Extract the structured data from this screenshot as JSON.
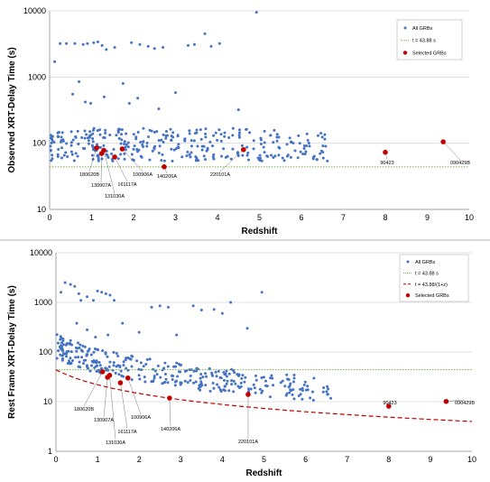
{
  "colors": {
    "all_grbs": "#4472c4",
    "selected": "#c00000",
    "threshold": "#70ad47",
    "curve": "#c00000"
  },
  "chart_data": [
    {
      "type": "scatter",
      "xlabel": "Redshift",
      "ylabel": "Observed XRT-Delay Time (s)",
      "xlim": [
        0,
        10
      ],
      "ylim": [
        10,
        10000
      ],
      "yscale": "log",
      "x_ticks": [
        "0",
        "1",
        "2",
        "3",
        "4",
        "5",
        "6",
        "7",
        "8",
        "9",
        "10"
      ],
      "y_ticks": [
        "10",
        "100",
        "1000",
        "10000"
      ],
      "legend_position": "top-right",
      "legend": [
        "All GRBs",
        "t = 43.88 s",
        "Selected GRBs"
      ],
      "threshold": 43.88,
      "selected": [
        {
          "name": "180620B",
          "x": 1.12,
          "y": 85
        },
        {
          "name": "130907A",
          "x": 1.24,
          "y": 70
        },
        {
          "name": "161117A",
          "x": 1.55,
          "y": 62
        },
        {
          "name": "131030A",
          "x": 1.29,
          "y": 78
        },
        {
          "name": "100906A",
          "x": 1.73,
          "y": 82
        },
        {
          "name": "140206A",
          "x": 2.73,
          "y": 44
        },
        {
          "name": "220101A",
          "x": 4.62,
          "y": 80
        },
        {
          "name": "90423",
          "x": 8.0,
          "y": 73
        },
        {
          "name": "090429B",
          "x": 9.38,
          "y": 105
        }
      ],
      "all_grbs_outliers": [
        {
          "x": 0.12,
          "y": 1700
        },
        {
          "x": 0.25,
          "y": 3200
        },
        {
          "x": 0.4,
          "y": 3200
        },
        {
          "x": 0.6,
          "y": 3200
        },
        {
          "x": 0.8,
          "y": 3100
        },
        {
          "x": 0.9,
          "y": 3200
        },
        {
          "x": 1.05,
          "y": 3300
        },
        {
          "x": 1.15,
          "y": 3400
        },
        {
          "x": 1.25,
          "y": 3000
        },
        {
          "x": 1.35,
          "y": 2600
        },
        {
          "x": 1.55,
          "y": 2800
        },
        {
          "x": 1.95,
          "y": 3300
        },
        {
          "x": 2.15,
          "y": 3100
        },
        {
          "x": 2.35,
          "y": 2900
        },
        {
          "x": 2.5,
          "y": 2700
        },
        {
          "x": 2.7,
          "y": 2800
        },
        {
          "x": 3.3,
          "y": 3000
        },
        {
          "x": 3.45,
          "y": 3100
        },
        {
          "x": 3.7,
          "y": 4500
        },
        {
          "x": 3.85,
          "y": 2900
        },
        {
          "x": 4.05,
          "y": 3200
        },
        {
          "x": 4.93,
          "y": 9500
        },
        {
          "x": 0.7,
          "y": 850
        },
        {
          "x": 0.55,
          "y": 550
        },
        {
          "x": 0.85,
          "y": 420
        },
        {
          "x": 1.3,
          "y": 500
        },
        {
          "x": 1.75,
          "y": 800
        },
        {
          "x": 2.1,
          "y": 480
        },
        {
          "x": 3.0,
          "y": 580
        },
        {
          "x": 2.6,
          "y": 330
        },
        {
          "x": 4.5,
          "y": 320
        },
        {
          "x": 0.98,
          "y": 400
        },
        {
          "x": 1.9,
          "y": 400
        }
      ]
    },
    {
      "type": "scatter",
      "xlabel": "Redshift",
      "ylabel": "Rest Frame XRT-Delay Time (s)",
      "xlim": [
        0,
        10
      ],
      "ylim": [
        1,
        10000
      ],
      "yscale": "log",
      "x_ticks": [
        "0",
        "1",
        "2",
        "3",
        "4",
        "5",
        "6",
        "7",
        "8",
        "9",
        "10"
      ],
      "y_ticks": [
        "1",
        "10",
        "100",
        "1000",
        "10000"
      ],
      "legend_position": "top-right",
      "legend": [
        "All GRBs",
        "t = 43.88 s",
        "t = 43.88/(1+z)",
        "Selected GRBs"
      ],
      "threshold": 43.88,
      "selected": [
        {
          "name": "180620B",
          "x": 1.12,
          "y": 40
        },
        {
          "name": "130907A",
          "x": 1.24,
          "y": 31
        },
        {
          "name": "161117A",
          "x": 1.55,
          "y": 24
        },
        {
          "name": "131030A",
          "x": 1.29,
          "y": 34
        },
        {
          "name": "100906A",
          "x": 1.73,
          "y": 30
        },
        {
          "name": "140206A",
          "x": 2.73,
          "y": 11.8
        },
        {
          "name": "220101A",
          "x": 4.62,
          "y": 14
        },
        {
          "name": "90423",
          "x": 8.0,
          "y": 8.1
        },
        {
          "name": "090429B",
          "x": 9.38,
          "y": 10.1
        }
      ],
      "all_grbs_outliers": [
        {
          "x": 0.12,
          "y": 1600
        },
        {
          "x": 0.22,
          "y": 2500
        },
        {
          "x": 0.35,
          "y": 2300
        },
        {
          "x": 0.45,
          "y": 2100
        },
        {
          "x": 0.55,
          "y": 1500
        },
        {
          "x": 0.6,
          "y": 1100
        },
        {
          "x": 0.75,
          "y": 1300
        },
        {
          "x": 0.9,
          "y": 1100
        },
        {
          "x": 1.0,
          "y": 1700
        },
        {
          "x": 1.1,
          "y": 1600
        },
        {
          "x": 1.2,
          "y": 1500
        },
        {
          "x": 1.3,
          "y": 1400
        },
        {
          "x": 1.4,
          "y": 1100
        },
        {
          "x": 2.3,
          "y": 800
        },
        {
          "x": 2.5,
          "y": 850
        },
        {
          "x": 2.7,
          "y": 800
        },
        {
          "x": 3.3,
          "y": 850
        },
        {
          "x": 3.5,
          "y": 700
        },
        {
          "x": 3.8,
          "y": 720
        },
        {
          "x": 4.0,
          "y": 600
        },
        {
          "x": 4.2,
          "y": 1000
        },
        {
          "x": 4.95,
          "y": 1600
        },
        {
          "x": 4.6,
          "y": 300
        },
        {
          "x": 0.5,
          "y": 380
        },
        {
          "x": 0.75,
          "y": 280
        },
        {
          "x": 0.95,
          "y": 200
        },
        {
          "x": 1.25,
          "y": 220
        },
        {
          "x": 1.6,
          "y": 380
        },
        {
          "x": 2.0,
          "y": 250
        },
        {
          "x": 2.9,
          "y": 220
        }
      ]
    }
  ]
}
